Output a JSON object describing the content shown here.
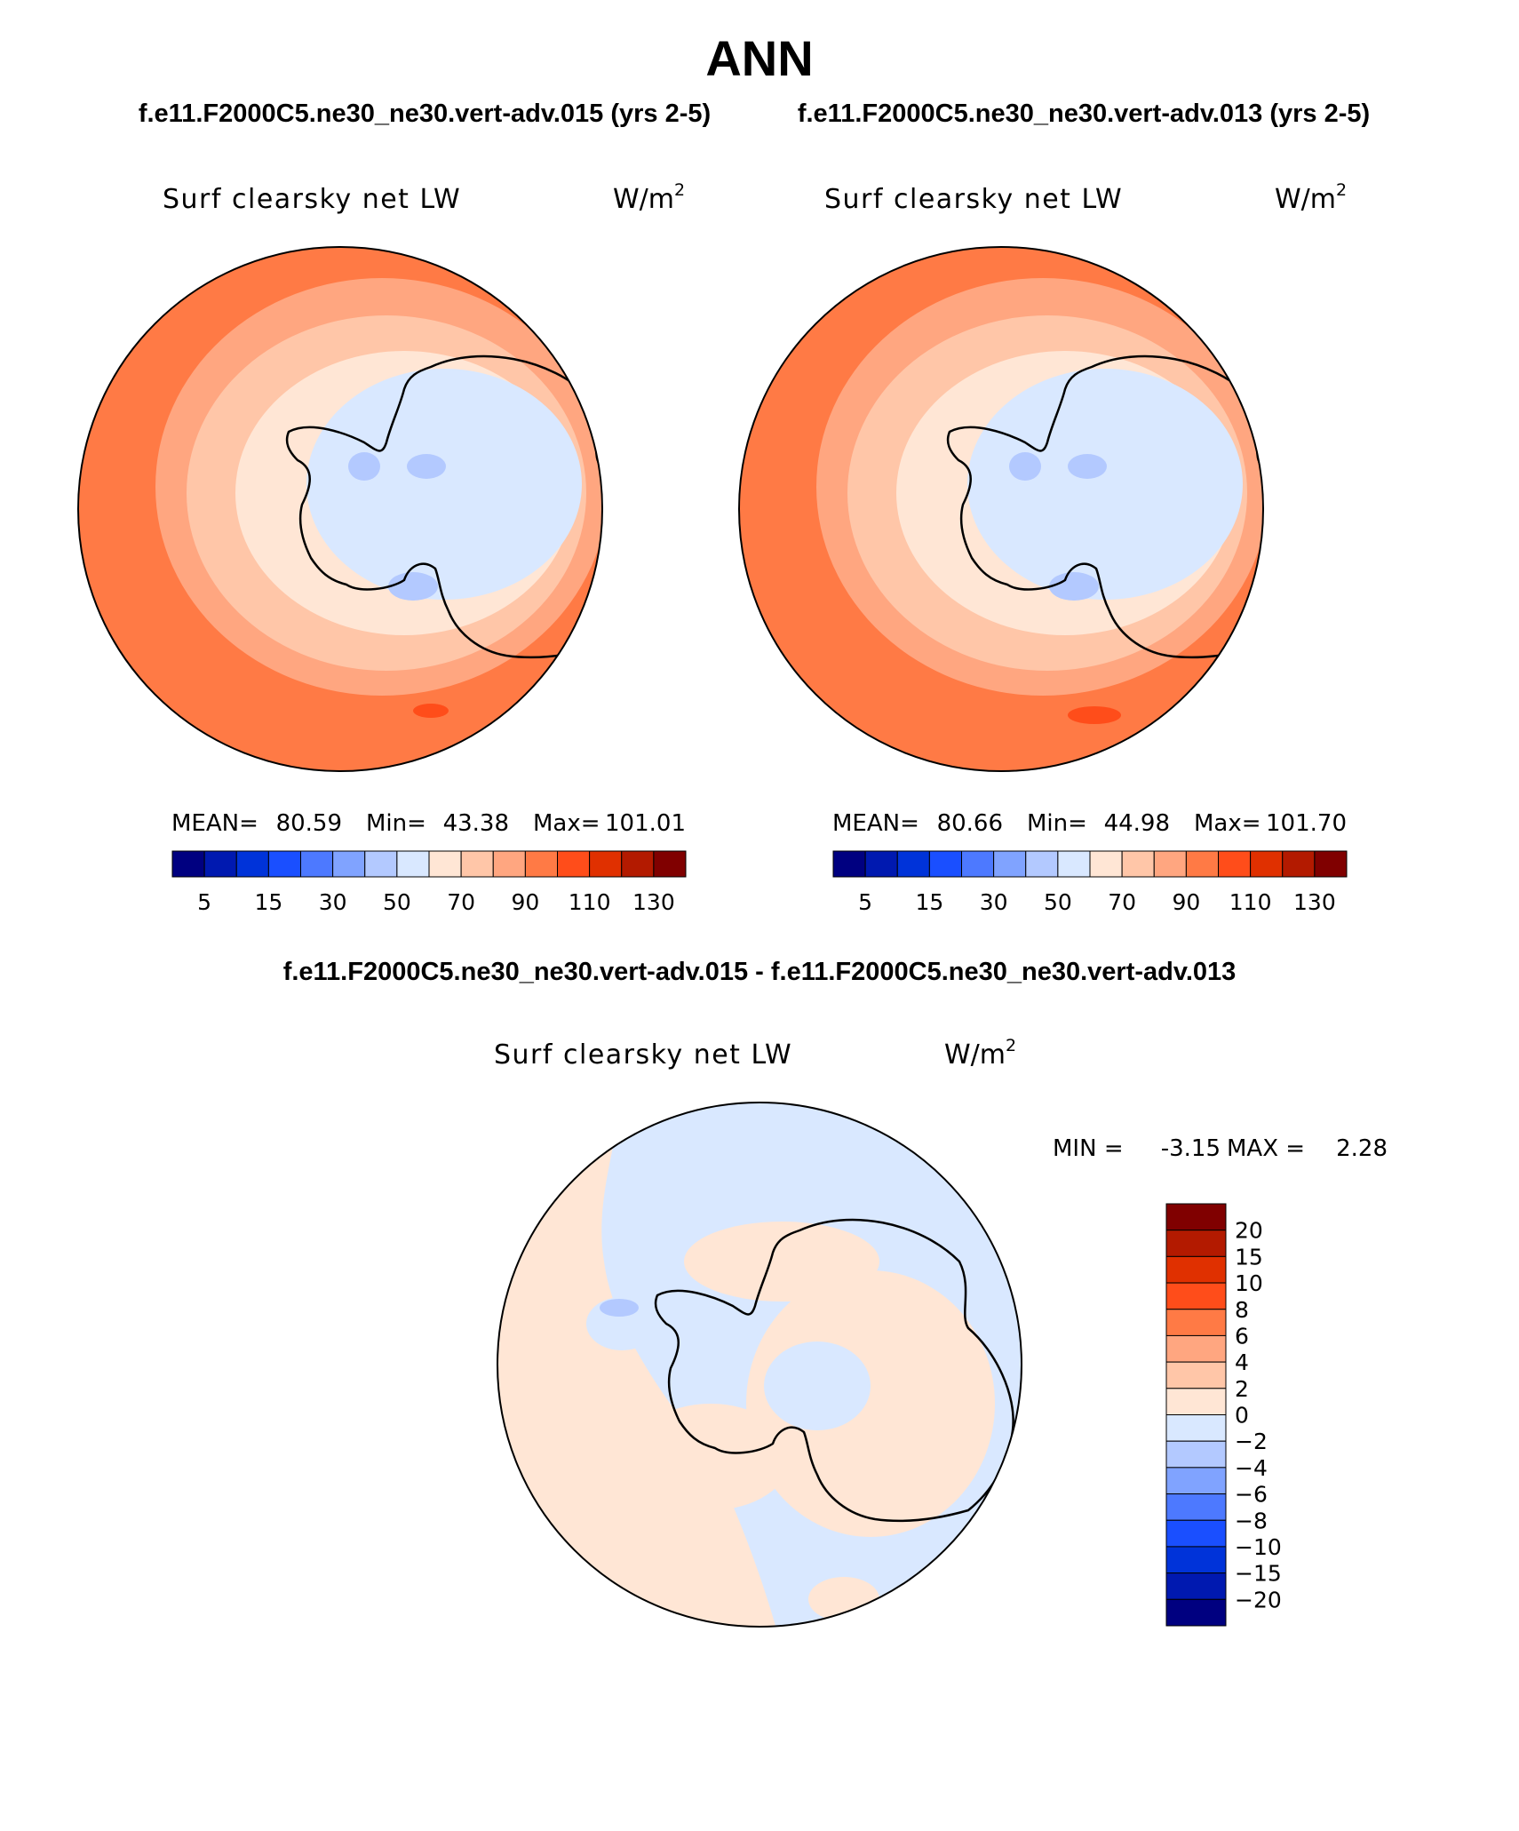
{
  "figure": {
    "title": "ANN",
    "case_a_label": "f.e11.F2000C5.ne30_ne30.vert-adv.015 (yrs 2-5)",
    "case_b_label": "f.e11.F2000C5.ne30_ne30.vert-adv.013 (yrs 2-5)",
    "diff_label": "f.e11.F2000C5.ne30_ne30.vert-adv.015 - f.e11.F2000C5.ne30_ne30.vert-adv.013"
  },
  "chart_data": [
    {
      "type": "heatmap",
      "projection": "south-polar-stereographic",
      "variable": "Surf clearsky net LW",
      "units": "W/m",
      "units_exponent": "2",
      "stats": {
        "mean_label": "MEAN=",
        "mean": "80.59",
        "min_label": "Min=",
        "min": "43.38",
        "max_label": "Max=",
        "max": "101.01"
      },
      "colorbar": {
        "orientation": "horizontal",
        "colors": [
          "#000080",
          "#0019b0",
          "#0033d9",
          "#1a4fff",
          "#4d79ff",
          "#80a3ff",
          "#b3c9ff",
          "#d9e8ff",
          "#ffe6d5",
          "#ffc6a8",
          "#ffa680",
          "#ff7a45",
          "#ff4d1a",
          "#e03000",
          "#b31a00",
          "#800000"
        ],
        "tick_labels": [
          "5",
          "15",
          "30",
          "50",
          "70",
          "90",
          "110",
          "130"
        ]
      }
    },
    {
      "type": "heatmap",
      "projection": "south-polar-stereographic",
      "variable": "Surf clearsky net LW",
      "units": "W/m",
      "units_exponent": "2",
      "stats": {
        "mean_label": "MEAN=",
        "mean": "80.66",
        "min_label": "Min=",
        "min": "44.98",
        "max_label": "Max=",
        "max": "101.70"
      },
      "colorbar": {
        "orientation": "horizontal",
        "colors": [
          "#000080",
          "#0019b0",
          "#0033d9",
          "#1a4fff",
          "#4d79ff",
          "#80a3ff",
          "#b3c9ff",
          "#d9e8ff",
          "#ffe6d5",
          "#ffc6a8",
          "#ffa680",
          "#ff7a45",
          "#ff4d1a",
          "#e03000",
          "#b31a00",
          "#800000"
        ],
        "tick_labels": [
          "5",
          "15",
          "30",
          "50",
          "70",
          "90",
          "110",
          "130"
        ]
      }
    },
    {
      "type": "heatmap",
      "projection": "south-polar-stereographic",
      "variable": "Surf clearsky net LW",
      "units": "W/m",
      "units_exponent": "2",
      "stats": {
        "min_label": "MIN =",
        "min": "-3.15",
        "max_label": "MAX =",
        "max": "2.28"
      },
      "colorbar": {
        "orientation": "vertical",
        "colors": [
          "#800000",
          "#b31a00",
          "#e03000",
          "#ff4d1a",
          "#ff7a45",
          "#ffa680",
          "#ffc6a8",
          "#ffe6d5",
          "#d9e8ff",
          "#b3c9ff",
          "#80a3ff",
          "#4d79ff",
          "#1a4fff",
          "#0033d9",
          "#0019b0",
          "#000080"
        ],
        "tick_labels": [
          "20",
          "15",
          "10",
          "8",
          "6",
          "4",
          "2",
          "0",
          "−2",
          "−4",
          "−6",
          "−8",
          "−10",
          "−15",
          "−20"
        ]
      }
    }
  ]
}
